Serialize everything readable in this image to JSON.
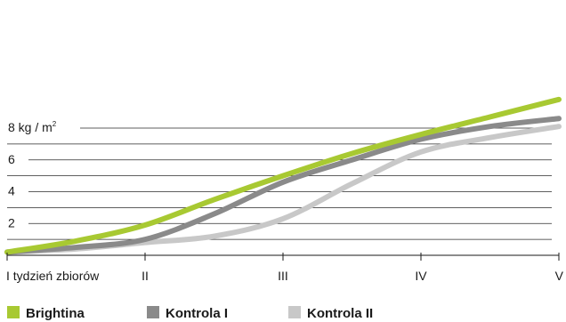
{
  "chart_data": {
    "type": "line",
    "title": "",
    "xlabel": "",
    "ylabel": "",
    "x_categories": [
      "I tydzień zbiorów",
      "II",
      "III",
      "IV",
      "V"
    ],
    "x_range": [
      1,
      5
    ],
    "y_range": [
      0,
      8
    ],
    "y_ticks": [
      {
        "value": 2,
        "label": "2"
      },
      {
        "value": 4,
        "label": "4"
      },
      {
        "value": 6,
        "label": "6"
      },
      {
        "value": 8,
        "label": "8 kg / m",
        "sup": "2"
      }
    ],
    "gridlines": [
      0,
      1,
      2,
      3,
      4,
      5,
      6,
      7,
      8
    ],
    "grid": true,
    "legend_position": "bottom",
    "series": [
      {
        "name": "Brightina",
        "color": "#a8c932",
        "x": [
          1,
          1.5,
          2,
          2.5,
          3,
          3.5,
          4,
          4.5,
          5
        ],
        "values": [
          0.2,
          0.9,
          1.9,
          3.5,
          5.0,
          6.4,
          7.6,
          8.7,
          9.8
        ]
      },
      {
        "name": "Kontrola I",
        "color": "#8a8a8a",
        "x": [
          1,
          1.5,
          2,
          2.5,
          3,
          3.5,
          4,
          4.5,
          5
        ],
        "values": [
          0.2,
          0.5,
          1.0,
          2.6,
          4.6,
          6.0,
          7.3,
          8.1,
          8.6
        ]
      },
      {
        "name": "Kontrola II",
        "color": "#c8c8c8",
        "x": [
          1,
          1.5,
          2,
          2.5,
          3,
          3.5,
          4,
          4.5,
          5
        ],
        "values": [
          0.2,
          0.4,
          0.8,
          1.2,
          2.3,
          4.5,
          6.5,
          7.4,
          8.1
        ]
      }
    ]
  }
}
